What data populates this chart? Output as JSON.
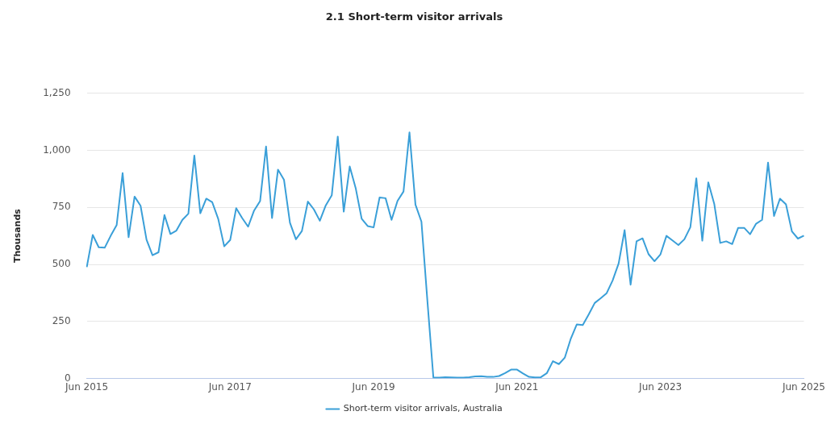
{
  "chart_data": {
    "type": "line",
    "title": "2.1 Short-term visitor arrivals",
    "ylabel": "Thousands",
    "categories": [
      "Jun 2015",
      null,
      null,
      null,
      null,
      null,
      null,
      null,
      null,
      null,
      null,
      null,
      null,
      null,
      null,
      null,
      null,
      null,
      null,
      null,
      null,
      null,
      null,
      null,
      "Jun 2017",
      null,
      null,
      null,
      null,
      null,
      null,
      null,
      null,
      null,
      null,
      null,
      null,
      null,
      null,
      null,
      null,
      null,
      null,
      null,
      null,
      null,
      null,
      null,
      "Jun 2019",
      null,
      null,
      null,
      null,
      null,
      null,
      null,
      null,
      null,
      null,
      null,
      null,
      null,
      null,
      null,
      null,
      null,
      null,
      null,
      null,
      null,
      null,
      null,
      "Jun 2021",
      null,
      null,
      null,
      null,
      null,
      null,
      null,
      null,
      null,
      null,
      null,
      null,
      null,
      null,
      null,
      null,
      null,
      null,
      null,
      null,
      null,
      null,
      null,
      "Jun 2023",
      null,
      null,
      null,
      null,
      null,
      null,
      null,
      null,
      null,
      null,
      null,
      null,
      null,
      null,
      null,
      null,
      null,
      null,
      null,
      null,
      null,
      null,
      null,
      "Jun 2025"
    ],
    "series": [
      {
        "name": "Short-term visitor arrivals, Australia",
        "color": "#3a9fd8",
        "values": [
          488,
          629,
          575,
          573,
          625,
          672,
          900,
          619,
          797,
          757,
          608,
          540,
          553,
          716,
          633,
          648,
          695,
          722,
          977,
          724,
          788,
          772,
          699,
          579,
          607,
          746,
          703,
          665,
          736,
          777,
          1016,
          703,
          915,
          871,
          682,
          610,
          646,
          775,
          741,
          691,
          759,
          803,
          1060,
          731,
          929,
          834,
          700,
          668,
          662,
          793,
          790,
          695,
          778,
          819,
          1078,
          762,
          687,
          340,
          4,
          4,
          6,
          5,
          4,
          4,
          6,
          9,
          10,
          7,
          7,
          11,
          24,
          39,
          39,
          22,
          7,
          5,
          6,
          24,
          76,
          63,
          92,
          175,
          237,
          234,
          281,
          331,
          352,
          374,
          430,
          504,
          650,
          411,
          601,
          614,
          545,
          514,
          544,
          625,
          605,
          585,
          610,
          663,
          877,
          604,
          859,
          765,
          594,
          601,
          589,
          660,
          660,
          632,
          678,
          695,
          946,
          712,
          788,
          763,
          644,
          613,
          626
        ]
      }
    ],
    "ylim": [
      0,
      1250
    ],
    "yticks": [
      0,
      250,
      500,
      750,
      {
        "value": 1000,
        "label": "1,000"
      },
      {
        "value": 1250,
        "label": "1,250"
      }
    ],
    "grid": "y",
    "legend": "bottom",
    "marker": "none",
    "line_style": "solid"
  }
}
